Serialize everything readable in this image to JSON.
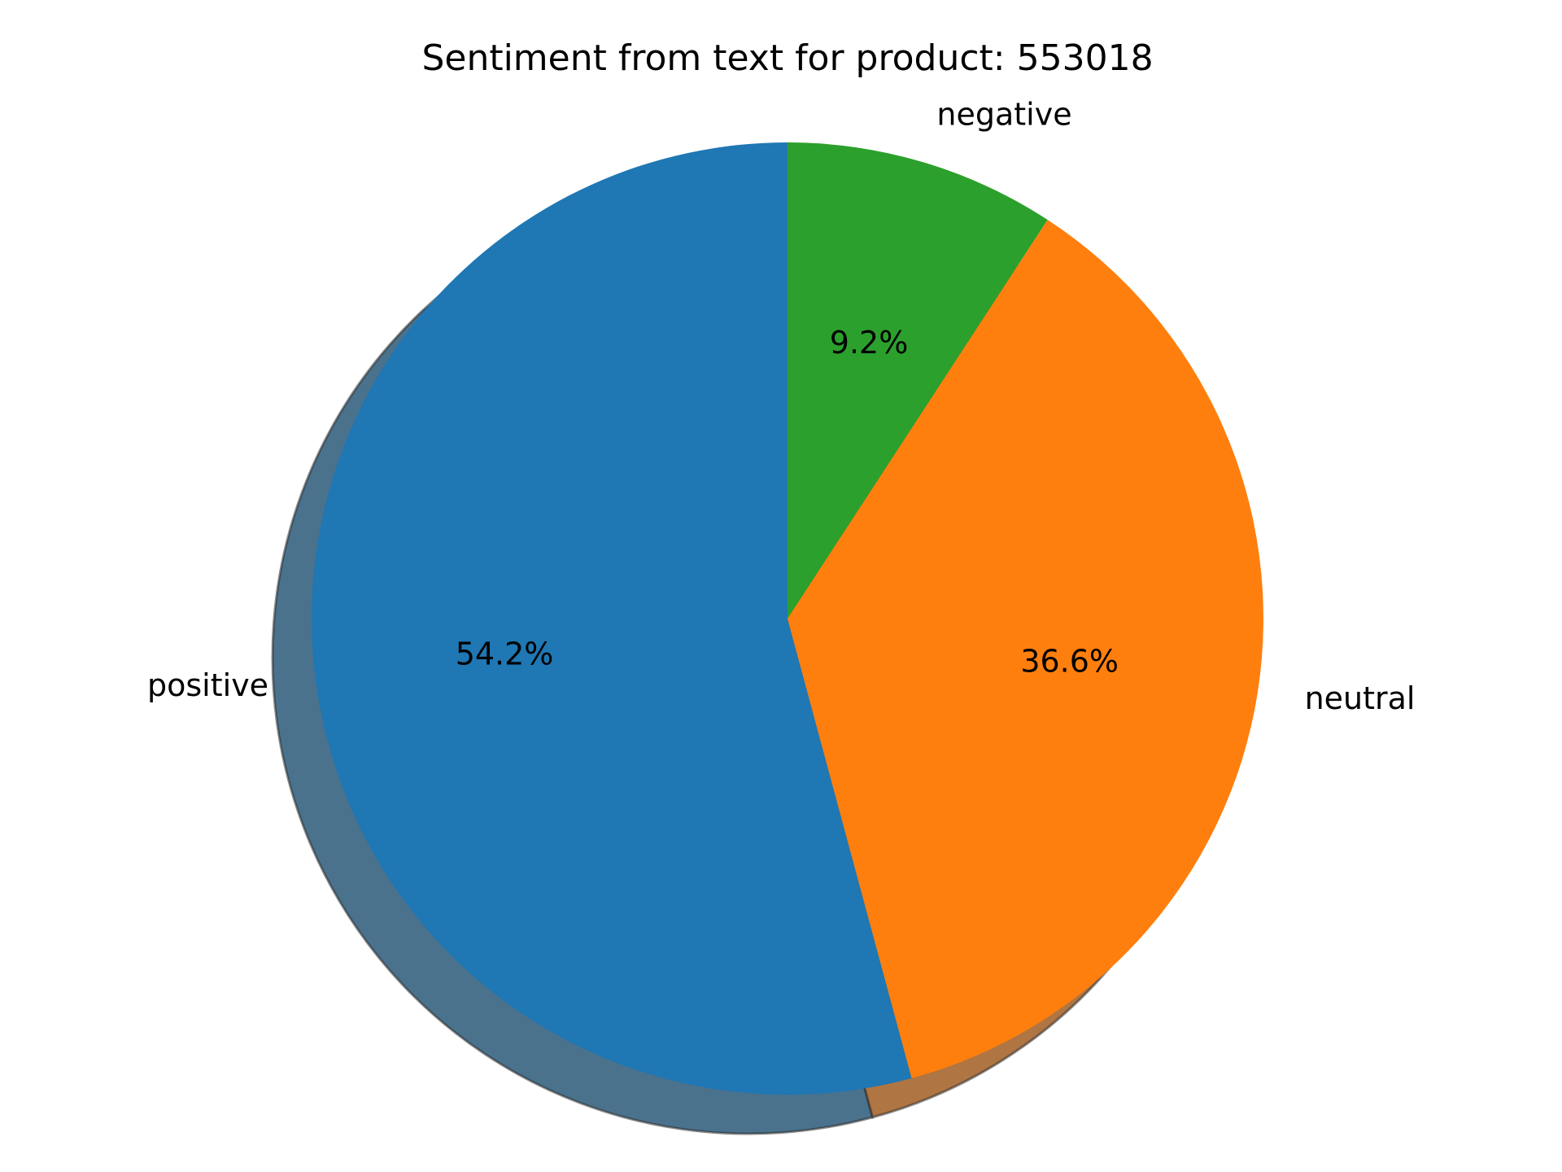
{
  "chart_data": {
    "type": "pie",
    "title": "Sentiment from text for product: 553018",
    "slices": [
      {
        "label": "positive",
        "value": 54.2,
        "pct_label": "54.2%",
        "color": "#1f77b4"
      },
      {
        "label": "neutral",
        "value": 36.6,
        "pct_label": "36.6%",
        "color": "#ff7f0e"
      },
      {
        "label": "negative",
        "value": 9.2,
        "pct_label": "9.2%",
        "color": "#2ca02c"
      }
    ],
    "start_angle_deg": 90,
    "direction": "counterclockwise",
    "shadow": true,
    "legend": "none"
  }
}
